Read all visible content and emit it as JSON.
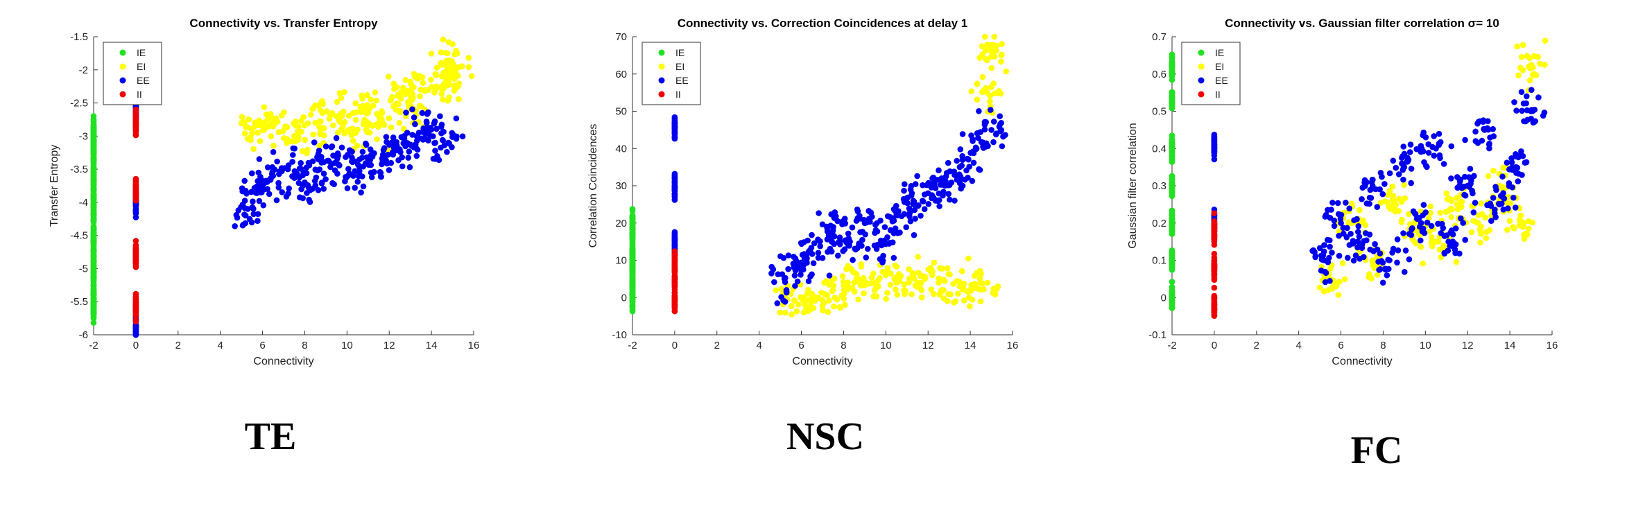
{
  "colors": {
    "IE": "#22e022",
    "EI": "#ffff00",
    "EE": "#0000ee",
    "II": "#ee0000"
  },
  "chart_data": [
    {
      "type": "scatter",
      "title": "Connectivity vs. Transfer Entropy",
      "xlabel": "Connectivity",
      "ylabel": "Transfer Entropy",
      "xlim": [
        -2,
        16
      ],
      "ylim": [
        -6,
        -1.5
      ],
      "xticks": [
        -2,
        0,
        2,
        4,
        6,
        8,
        10,
        12,
        14,
        16
      ],
      "yticks": [
        -6,
        -5.5,
        -5,
        -4.5,
        -4,
        -3.5,
        -3,
        -2.5,
        -2,
        -1.5
      ],
      "legend": {
        "position": "top-left",
        "entries": [
          "IE",
          "EI",
          "EE",
          "II"
        ]
      },
      "caption": "TE",
      "series": [
        {
          "name": "IE",
          "x": [
            -2,
            -2,
            -2,
            -2,
            -2,
            -2,
            -2,
            -2,
            -2,
            -2,
            -2
          ],
          "y": [
            -2.9,
            -3.1,
            -3.3,
            -3.6,
            -3.9,
            -4.2,
            -4.5,
            -4.8,
            -5.1,
            -5.4,
            -5.6
          ]
        },
        {
          "name": "EI",
          "x": [
            5.5,
            6.5,
            7.5,
            8.5,
            9.5,
            10.5,
            11.5,
            12.5,
            13.5,
            14.5,
            15,
            14.8,
            13,
            11
          ],
          "y": [
            -2.9,
            -2.8,
            -3.0,
            -2.8,
            -2.7,
            -2.9,
            -2.8,
            -2.4,
            -2.3,
            -2.1,
            -1.9,
            -2.2,
            -2.6,
            -2.6
          ]
        },
        {
          "name": "EE",
          "x": [
            0,
            0,
            0,
            5.2,
            5.8,
            6.5,
            7.2,
            8.0,
            8.8,
            9.5,
            10.3,
            11.0,
            11.8,
            12.5,
            13.3,
            14.0,
            14.8
          ],
          "y": [
            -2.6,
            -4.0,
            -5.9,
            -4.2,
            -3.8,
            -3.6,
            -3.5,
            -3.7,
            -3.4,
            -3.3,
            -3.6,
            -3.4,
            -3.3,
            -3.2,
            -3.0,
            -2.9,
            -3.1
          ]
        },
        {
          "name": "II",
          "x": [
            0,
            0,
            0,
            0
          ],
          "y": [
            -2.8,
            -3.8,
            -4.8,
            -5.6
          ]
        }
      ]
    },
    {
      "type": "scatter",
      "title": "Connectivity vs. Correction Coincidences at delay 1",
      "xlabel": "Connectivity",
      "ylabel": "Correlation Coincidences",
      "xlim": [
        -2,
        16
      ],
      "ylim": [
        -10,
        70
      ],
      "xticks": [
        -2,
        0,
        2,
        4,
        6,
        8,
        10,
        12,
        14,
        16
      ],
      "yticks": [
        -10,
        0,
        10,
        20,
        30,
        40,
        50,
        60,
        70
      ],
      "legend": {
        "position": "top-left",
        "entries": [
          "IE",
          "EI",
          "EE",
          "II"
        ]
      },
      "caption": "NSC",
      "series": [
        {
          "name": "IE",
          "x": [
            -2,
            -2,
            -2,
            -2,
            -2,
            -2
          ],
          "y": [
            0,
            4,
            8,
            12,
            17,
            21
          ]
        },
        {
          "name": "EI",
          "x": [
            5.5,
            6.5,
            7.5,
            8.5,
            9.5,
            10.5,
            11.5,
            12.5,
            13.5,
            14.5,
            14.8,
            15
          ],
          "y": [
            1,
            1,
            2,
            4,
            4,
            4,
            4,
            4,
            3,
            4,
            55,
            66
          ]
        },
        {
          "name": "EE",
          "x": [
            0,
            0,
            0,
            5.2,
            6.0,
            6.8,
            7.5,
            8.3,
            9.0,
            9.8,
            10.5,
            11.3,
            12.0,
            12.8,
            13.5,
            14.3,
            15.0
          ],
          "y": [
            14,
            30,
            46,
            5,
            8,
            12,
            18,
            15,
            20,
            14,
            22,
            25,
            28,
            30,
            35,
            40,
            45
          ]
        },
        {
          "name": "II",
          "x": [
            0,
            0,
            0
          ],
          "y": [
            -1,
            5,
            10
          ]
        }
      ]
    },
    {
      "type": "scatter",
      "title": "Connectivity vs. Gaussian filter correlation σ= 10",
      "xlabel": "Connectivity",
      "ylabel": "Gaussian filter correlation",
      "xlim": [
        -2,
        16
      ],
      "ylim": [
        -0.1,
        0.7
      ],
      "xticks": [
        -2,
        0,
        2,
        4,
        6,
        8,
        10,
        12,
        14,
        16
      ],
      "yticks": [
        -0.1,
        0,
        0.1,
        0.2,
        0.3,
        0.4,
        0.5,
        0.6,
        0.7
      ],
      "legend": {
        "position": "top-left",
        "entries": [
          "IE",
          "EI",
          "EE",
          "II"
        ]
      },
      "caption": "FC",
      "series": [
        {
          "name": "IE",
          "x": [
            -2,
            -2,
            -2,
            -2,
            -2,
            -2,
            -2
          ],
          "y": [
            0,
            0.1,
            0.2,
            0.3,
            0.4,
            0.53,
            0.62
          ]
        },
        {
          "name": "EI",
          "x": [
            5.5,
            6.5,
            7.5,
            8.5,
            9.5,
            10.5,
            11.5,
            12.5,
            13.5,
            14.5,
            14.9
          ],
          "y": [
            0.05,
            0.2,
            0.1,
            0.25,
            0.2,
            0.15,
            0.25,
            0.2,
            0.3,
            0.2,
            0.62
          ]
        },
        {
          "name": "EE",
          "x": [
            0,
            0,
            5.2,
            6.0,
            6.8,
            7.5,
            8.3,
            9.0,
            9.8,
            10.5,
            11.3,
            12.0,
            12.8,
            13.5,
            14.3,
            15.0
          ],
          "y": [
            0.2,
            0.41,
            0.1,
            0.2,
            0.15,
            0.3,
            0.1,
            0.35,
            0.2,
            0.4,
            0.15,
            0.3,
            0.45,
            0.25,
            0.35,
            0.5
          ]
        },
        {
          "name": "II",
          "x": [
            0,
            0,
            0
          ],
          "y": [
            -0.02,
            0.08,
            0.18
          ]
        }
      ]
    }
  ]
}
